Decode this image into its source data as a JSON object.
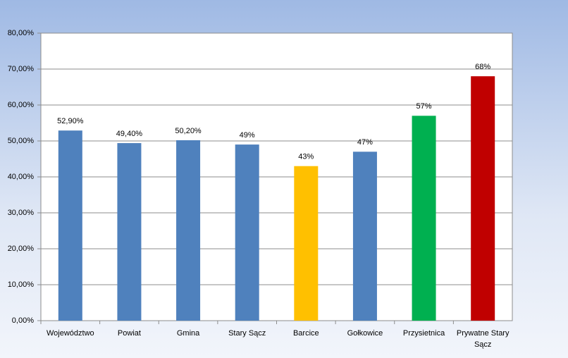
{
  "chart_data": {
    "type": "bar",
    "categories": [
      "Województwo",
      "Powiat",
      "Gmina",
      "Stary Sącz",
      "Barcice",
      "Gołkowice",
      "Przysietnica",
      "Prywatne Stary Sącz"
    ],
    "values": [
      52.9,
      49.4,
      50.2,
      49,
      43,
      47,
      57,
      68
    ],
    "value_labels": [
      "52,90%",
      "49,40%",
      "50,20%",
      "49%",
      "43%",
      "47%",
      "57%",
      "68%"
    ],
    "colors": [
      "#4f81bd",
      "#4f81bd",
      "#4f81bd",
      "#4f81bd",
      "#ffc000",
      "#4f81bd",
      "#00b050",
      "#c00000"
    ],
    "ylim": [
      0,
      80
    ],
    "yticks": [
      {
        "value": 0,
        "label": "0,00%"
      },
      {
        "value": 10,
        "label": "10,00%"
      },
      {
        "value": 20,
        "label": "20,00%"
      },
      {
        "value": 30,
        "label": "30,00%"
      },
      {
        "value": 40,
        "label": "40,00%"
      },
      {
        "value": 50,
        "label": "50,00%"
      },
      {
        "value": 60,
        "label": "60,00%"
      },
      {
        "value": 70,
        "label": "70,00%"
      },
      {
        "value": 80,
        "label": "80,00%"
      }
    ],
    "grid": true
  }
}
